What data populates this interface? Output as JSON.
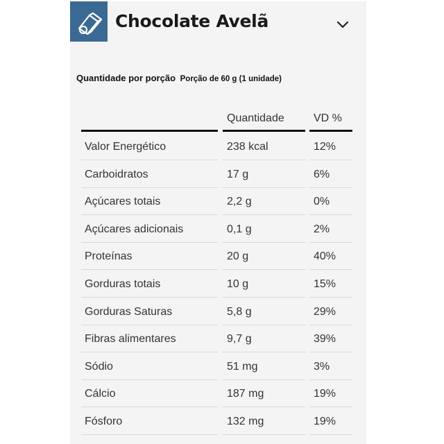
{
  "header": {
    "title": "Chocolate Avelã",
    "icon": "nutrition-label-icon",
    "toggle_icon": "chevron-down-icon"
  },
  "serving": {
    "label": "Quantidade por porção",
    "portion": "Porção de 60 g (1 unidade)"
  },
  "table": {
    "columns": [
      "",
      "Quantidade",
      "VD %"
    ],
    "rows": [
      {
        "nutrient": "Valor Energético",
        "amount": "238 kcal",
        "dv": "12%"
      },
      {
        "nutrient": "Carboidratos",
        "amount": "17 g",
        "dv": "6%"
      },
      {
        "nutrient": "Açúcares totais",
        "amount": "2,2 g",
        "dv": "0%"
      },
      {
        "nutrient": "Açúcares adicionais",
        "amount": "0,1 g",
        "dv": "2%"
      },
      {
        "nutrient": "Proteínas",
        "amount": "20 g",
        "dv": "40%"
      },
      {
        "nutrient": "Gorduras totais",
        "amount": "10 g",
        "dv": "15%"
      },
      {
        "nutrient": "Gorduras Saturas",
        "amount": "5,8 g",
        "dv": "29%"
      },
      {
        "nutrient": "Fibras alimentares",
        "amount": "9,7 g",
        "dv": "39%"
      },
      {
        "nutrient": "Sódio",
        "amount": "51 mg",
        "dv": "3%"
      },
      {
        "nutrient": "Cálcio",
        "amount": "187 mg",
        "dv": "19%"
      },
      {
        "nutrient": "Fósforo",
        "amount": "132 mg",
        "dv": "19%"
      }
    ]
  },
  "colors": {
    "icon_bg": "#3a6a93",
    "panel_bg": "#f4f4f4",
    "rule": "#111111",
    "row_divider": "#d8d8d8"
  }
}
